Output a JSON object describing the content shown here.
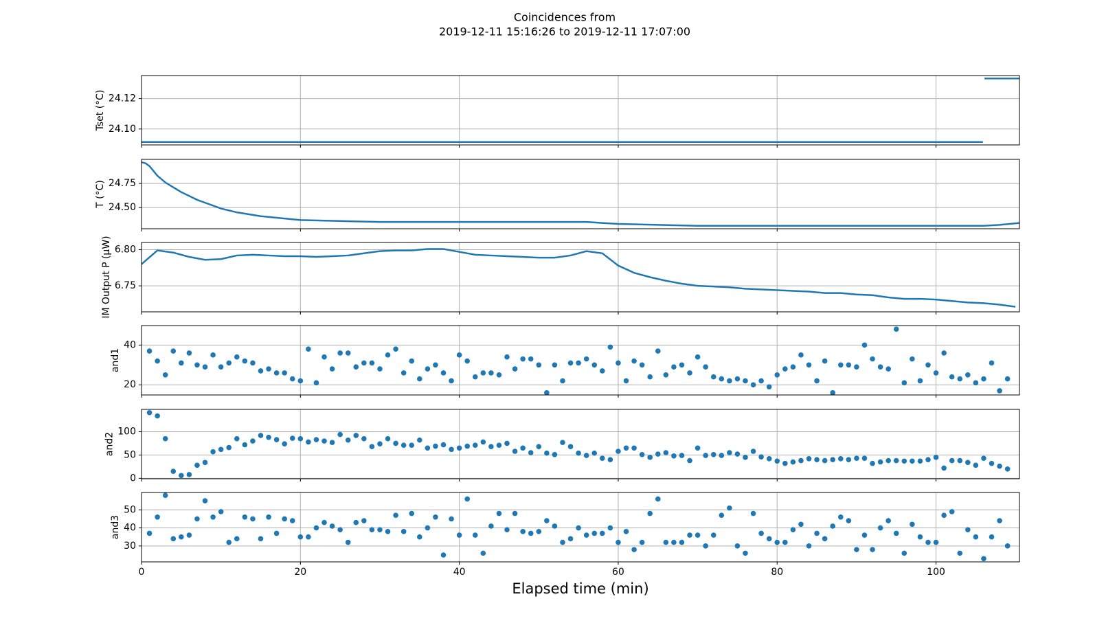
{
  "title": "Coincidences from",
  "subtitle": "2019-12-11 15:16:26 to 2019-12-11 17:07:00",
  "xlabel": "Elapsed time (min)",
  "xlim": [
    0,
    110.5
  ],
  "xticks": [
    0,
    20,
    40,
    60,
    80,
    100
  ],
  "grid": true,
  "chart_data": [
    {
      "type": "line",
      "ylabel": "Tset (°C)",
      "ylim": [
        24.0895,
        24.1352
      ],
      "yticks": [
        {
          "value": 24.1,
          "label": "24.10"
        },
        24.12
      ],
      "series": [
        {
          "color": "#1f77b4",
          "x": [
            0,
            105.9,
            106,
            106.1,
            110.5
          ],
          "values": [
            24.0914,
            24.0914,
            null,
            24.1333,
            24.1333
          ]
        }
      ]
    },
    {
      "type": "line",
      "ylabel": "T (°C)",
      "ylim": [
        24.28,
        25.0
      ],
      "yticks": [
        {
          "value": 24.5,
          "label": "24.50"
        },
        24.75
      ],
      "series": [
        {
          "color": "#1f77b4",
          "x": [
            0,
            0.5,
            1,
            1.5,
            2,
            3,
            4,
            5,
            6,
            7,
            8,
            10,
            12,
            15,
            20,
            25,
            30,
            40,
            50,
            56,
            58,
            60,
            65,
            70,
            80,
            90,
            100,
            105,
            106,
            108,
            110.5
          ],
          "values": [
            24.97,
            24.96,
            24.93,
            24.88,
            24.83,
            24.76,
            24.71,
            24.66,
            24.62,
            24.58,
            24.55,
            24.49,
            24.45,
            24.41,
            24.37,
            24.36,
            24.35,
            24.35,
            24.35,
            24.35,
            24.34,
            24.33,
            24.32,
            24.31,
            24.31,
            24.31,
            24.31,
            24.31,
            24.31,
            24.32,
            24.34
          ]
        }
      ]
    },
    {
      "type": "line",
      "ylabel": "IM Output P (μW)",
      "ylim": [
        6.714,
        6.81
      ],
      "yticks": [
        6.75,
        {
          "value": 6.8,
          "label": "6.80"
        }
      ],
      "series": [
        {
          "color": "#1f77b4",
          "x": [
            0,
            2,
            4,
            6,
            8,
            10,
            12,
            14,
            16,
            18,
            20,
            22,
            24,
            26,
            28,
            30,
            32,
            34,
            36,
            38,
            40,
            42,
            44,
            46,
            48,
            50,
            52,
            54,
            56,
            58,
            60,
            62,
            64,
            66,
            68,
            70,
            72,
            74,
            76,
            78,
            80,
            82,
            84,
            86,
            88,
            90,
            92,
            94,
            96,
            98,
            100,
            102,
            104,
            106,
            108,
            110
          ],
          "values": [
            6.78,
            6.799,
            6.796,
            6.79,
            6.786,
            6.787,
            6.792,
            6.793,
            6.792,
            6.791,
            6.791,
            6.79,
            6.791,
            6.792,
            6.795,
            6.798,
            6.799,
            6.799,
            6.801,
            6.801,
            6.797,
            6.793,
            6.792,
            6.791,
            6.79,
            6.789,
            6.789,
            6.792,
            6.798,
            6.795,
            6.778,
            6.768,
            6.762,
            6.757,
            6.753,
            6.75,
            6.749,
            6.748,
            6.746,
            6.745,
            6.744,
            6.743,
            6.742,
            6.74,
            6.74,
            6.738,
            6.737,
            6.734,
            6.732,
            6.732,
            6.731,
            6.729,
            6.727,
            6.726,
            6.724,
            6.721
          ]
        }
      ]
    },
    {
      "type": "scatter",
      "ylabel": "and1",
      "ylim": [
        14.9,
        49.8
      ],
      "yticks": [
        20,
        40
      ],
      "series": [
        {
          "color": "#1f77b4",
          "x": [
            1,
            2,
            3,
            4,
            5,
            6,
            7,
            8,
            9,
            10,
            11,
            12,
            13,
            14,
            15,
            16,
            17,
            18,
            19,
            20,
            21,
            22,
            23,
            24,
            25,
            26,
            27,
            28,
            29,
            30,
            31,
            32,
            33,
            34,
            35,
            36,
            37,
            38,
            39,
            40,
            41,
            42,
            43,
            44,
            45,
            46,
            47,
            48,
            49,
            50,
            51,
            52,
            53,
            54,
            55,
            56,
            57,
            58,
            59,
            60,
            61,
            62,
            63,
            64,
            65,
            66,
            67,
            68,
            69,
            70,
            71,
            72,
            73,
            74,
            75,
            76,
            77,
            78,
            79,
            80,
            81,
            82,
            83,
            84,
            85,
            86,
            87,
            88,
            89,
            90,
            91,
            92,
            93,
            94,
            95,
            96,
            97,
            98,
            99,
            100,
            101,
            102,
            103,
            104,
            105,
            106,
            107,
            108,
            109
          ],
          "values": [
            37,
            32,
            25,
            37,
            31,
            36,
            30,
            29,
            35,
            29,
            31,
            34,
            32,
            31,
            27,
            28,
            26,
            26,
            23,
            22,
            38,
            21,
            34,
            28,
            36,
            36,
            29,
            31,
            31,
            28,
            35,
            38,
            26,
            32,
            23,
            28,
            30,
            26,
            22,
            35,
            32,
            24,
            26,
            26,
            25,
            34,
            28,
            33,
            33,
            30,
            16,
            30,
            22,
            31,
            31,
            33,
            30,
            27,
            39,
            31,
            22,
            32,
            30,
            24,
            37,
            25,
            29,
            30,
            26,
            34,
            29,
            24,
            23,
            22,
            23,
            22,
            20,
            22,
            19,
            25,
            28,
            29,
            35,
            30,
            22,
            32,
            16,
            30,
            30,
            29,
            40,
            33,
            29,
            28,
            48,
            21,
            33,
            22,
            30,
            26,
            36,
            24,
            23,
            25,
            21,
            23,
            31,
            17,
            23
          ]
        }
      ]
    },
    {
      "type": "scatter",
      "ylabel": "and2",
      "ylim": [
        -1,
        148
      ],
      "yticks": [
        0,
        50,
        100
      ],
      "series": [
        {
          "color": "#1f77b4",
          "x": [
            1,
            2,
            3,
            4,
            5,
            6,
            7,
            8,
            9,
            10,
            11,
            12,
            13,
            14,
            15,
            16,
            17,
            18,
            19,
            20,
            21,
            22,
            23,
            24,
            25,
            26,
            27,
            28,
            29,
            30,
            31,
            32,
            33,
            34,
            35,
            36,
            37,
            38,
            39,
            40,
            41,
            42,
            43,
            44,
            45,
            46,
            47,
            48,
            49,
            50,
            51,
            52,
            53,
            54,
            55,
            56,
            57,
            58,
            59,
            60,
            61,
            62,
            63,
            64,
            65,
            66,
            67,
            68,
            69,
            70,
            71,
            72,
            73,
            74,
            75,
            76,
            77,
            78,
            79,
            80,
            81,
            82,
            83,
            84,
            85,
            86,
            87,
            88,
            89,
            90,
            91,
            92,
            93,
            94,
            95,
            96,
            97,
            98,
            99,
            100,
            101,
            102,
            103,
            104,
            105,
            106,
            107,
            108,
            109
          ],
          "values": [
            141,
            134,
            85,
            15,
            6,
            8,
            28,
            34,
            57,
            62,
            66,
            85,
            72,
            80,
            92,
            88,
            83,
            74,
            86,
            85,
            78,
            83,
            80,
            77,
            94,
            82,
            92,
            85,
            68,
            74,
            85,
            75,
            71,
            71,
            82,
            65,
            69,
            72,
            62,
            65,
            69,
            71,
            78,
            68,
            71,
            75,
            58,
            65,
            55,
            68,
            54,
            51,
            77,
            68,
            54,
            49,
            54,
            43,
            40,
            58,
            65,
            65,
            51,
            45,
            52,
            55,
            48,
            49,
            38,
            65,
            49,
            51,
            49,
            55,
            52,
            45,
            58,
            46,
            42,
            37,
            32,
            35,
            38,
            42,
            40,
            38,
            40,
            42,
            40,
            43,
            43,
            32,
            35,
            38,
            38,
            37,
            37,
            37,
            40,
            45,
            22,
            38,
            38,
            34,
            28,
            43,
            32,
            26,
            20
          ]
        }
      ]
    },
    {
      "type": "scatter",
      "ylabel": "and3",
      "ylim": [
        21.2,
        59.6
      ],
      "yticks": [
        30,
        40,
        50
      ],
      "series": [
        {
          "color": "#1f77b4",
          "x": [
            1,
            2,
            3,
            4,
            5,
            6,
            7,
            8,
            9,
            10,
            11,
            12,
            13,
            14,
            15,
            16,
            17,
            18,
            19,
            20,
            21,
            22,
            23,
            24,
            25,
            26,
            27,
            28,
            29,
            30,
            31,
            32,
            33,
            34,
            35,
            36,
            37,
            38,
            39,
            40,
            41,
            42,
            43,
            44,
            45,
            46,
            47,
            48,
            49,
            50,
            51,
            52,
            53,
            54,
            55,
            56,
            57,
            58,
            59,
            60,
            61,
            62,
            63,
            64,
            65,
            66,
            67,
            68,
            69,
            70,
            71,
            72,
            73,
            74,
            75,
            76,
            77,
            78,
            79,
            80,
            81,
            82,
            83,
            84,
            85,
            86,
            87,
            88,
            89,
            90,
            91,
            92,
            93,
            94,
            95,
            96,
            97,
            98,
            99,
            100,
            101,
            102,
            103,
            104,
            105,
            106,
            107,
            108,
            109
          ],
          "values": [
            37,
            46,
            58,
            34,
            35,
            36,
            45,
            55,
            46,
            49,
            32,
            34,
            46,
            45,
            34,
            46,
            37,
            45,
            44,
            35,
            35,
            40,
            43,
            41,
            39,
            32,
            43,
            44,
            39,
            39,
            38,
            47,
            38,
            48,
            35,
            40,
            46,
            25,
            45,
            36,
            56,
            36,
            26,
            41,
            48,
            39,
            48,
            38,
            37,
            38,
            44,
            41,
            32,
            34,
            40,
            36,
            37,
            37,
            40,
            32,
            38,
            28,
            32,
            48,
            56,
            32,
            32,
            32,
            36,
            36,
            30,
            36,
            47,
            51,
            30,
            26,
            48,
            37,
            34,
            32,
            32,
            39,
            42,
            30,
            37,
            34,
            41,
            46,
            44,
            28,
            36,
            28,
            40,
            44,
            37,
            26,
            42,
            35,
            32,
            32,
            47,
            49,
            26,
            39,
            35,
            23,
            35,
            44,
            30
          ]
        }
      ]
    }
  ]
}
